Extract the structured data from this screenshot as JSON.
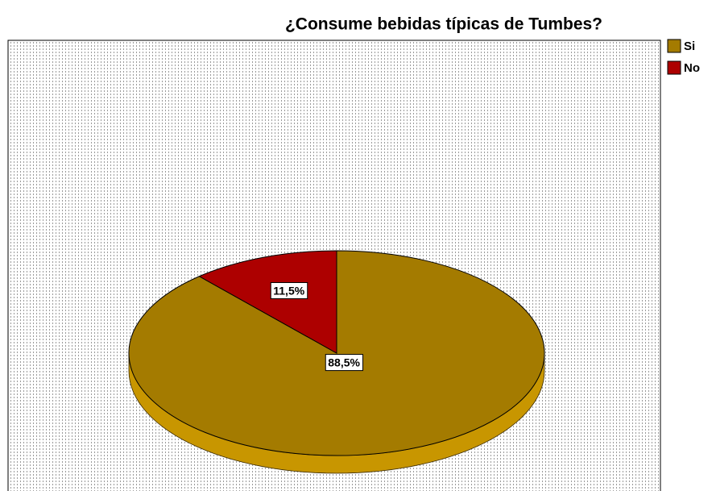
{
  "chart_data": {
    "type": "pie",
    "title": "¿Consume bebidas típicas de Tumbes?",
    "categories": [
      "Si",
      "No"
    ],
    "values": [
      88.5,
      11.5
    ],
    "value_labels": [
      "88,5%",
      "11,5%"
    ],
    "colors": [
      "#a47b00",
      "#ad0000"
    ],
    "legend": "top-right"
  }
}
